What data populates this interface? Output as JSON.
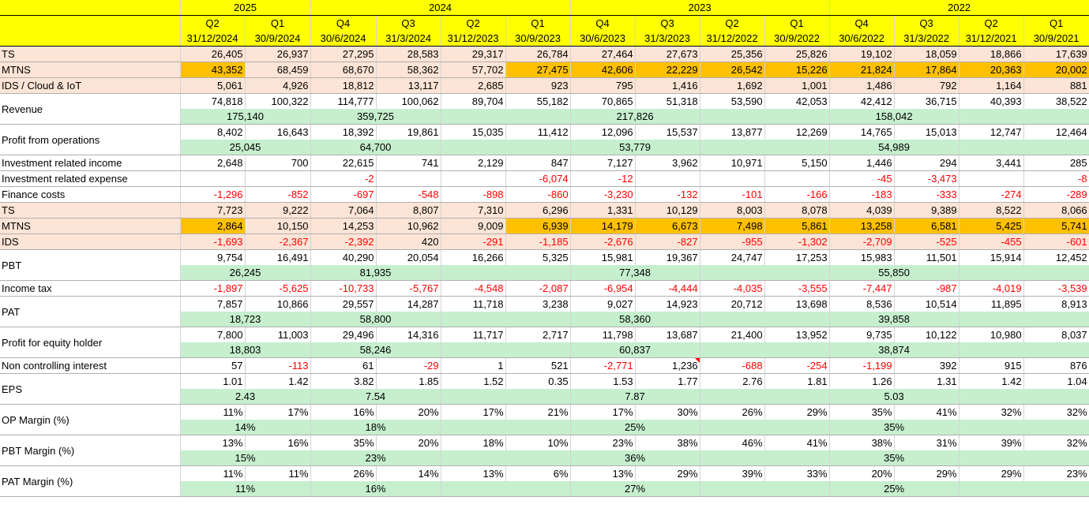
{
  "columns": [
    {
      "quarter": "Q2",
      "date": "31/12/2024"
    },
    {
      "quarter": "Q1",
      "date": "30/9/2024"
    },
    {
      "quarter": "Q4",
      "date": "30/6/2024"
    },
    {
      "quarter": "Q3",
      "date": "31/3/2024"
    },
    {
      "quarter": "Q2",
      "date": "31/12/2023"
    },
    {
      "quarter": "Q1",
      "date": "30/9/2023"
    },
    {
      "quarter": "Q4",
      "date": "30/6/2023"
    },
    {
      "quarter": "Q3",
      "date": "31/3/2023"
    },
    {
      "quarter": "Q2",
      "date": "31/12/2022"
    },
    {
      "quarter": "Q1",
      "date": "30/9/2022"
    },
    {
      "quarter": "Q4",
      "date": "30/6/2022"
    },
    {
      "quarter": "Q3",
      "date": "31/3/2022"
    },
    {
      "quarter": "Q2",
      "date": "31/12/2021"
    },
    {
      "quarter": "Q1",
      "date": "30/9/2021"
    }
  ],
  "years": [
    {
      "label": "2025",
      "span": 2
    },
    {
      "label": "2024",
      "span": 4
    },
    {
      "label": "2023",
      "span": 4
    },
    {
      "label": "2022",
      "span": 4
    }
  ],
  "rows": [
    {
      "kind": "single",
      "style": "orange",
      "label": "TS",
      "values": [
        "26,405",
        "26,937",
        "27,295",
        "28,583",
        "29,317",
        "26,784",
        "27,464",
        "27,673",
        "25,356",
        "25,826",
        "19,102",
        "18,059",
        "18,866",
        "17,639"
      ]
    },
    {
      "kind": "single",
      "style": "orange",
      "label": "MTNS",
      "highlight": [
        0,
        5,
        6,
        7,
        8,
        9,
        10,
        11,
        12,
        13
      ],
      "values": [
        "43,352",
        "68,459",
        "68,670",
        "58,362",
        "57,702",
        "27,475",
        "42,606",
        "22,229",
        "26,542",
        "15,226",
        "21,824",
        "17,864",
        "20,363",
        "20,002"
      ]
    },
    {
      "kind": "single",
      "style": "orange",
      "label": "IDS / Cloud & IoT",
      "values": [
        "5,061",
        "4,926",
        "18,812",
        "13,117",
        "2,685",
        "923",
        "795",
        "1,416",
        "1,692",
        "1,001",
        "1,486",
        "792",
        "1,164",
        "881"
      ]
    },
    {
      "kind": "pair",
      "label": "Revenue",
      "values": [
        "74,818",
        "100,322",
        "114,777",
        "100,062",
        "89,704",
        "55,182",
        "70,865",
        "51,318",
        "53,590",
        "42,053",
        "42,412",
        "36,715",
        "40,393",
        "38,522"
      ],
      "sums": [
        "175,140",
        "359,725",
        "217,826",
        "158,042"
      ]
    },
    {
      "kind": "pair",
      "label": "Profit from operations",
      "values": [
        "8,402",
        "16,643",
        "18,392",
        "19,861",
        "15,035",
        "11,412",
        "12,096",
        "15,537",
        "13,877",
        "12,269",
        "14,765",
        "15,013",
        "12,747",
        "12,464"
      ],
      "sums": [
        "25,045",
        "64,700",
        "53,779",
        "54,989"
      ]
    },
    {
      "kind": "single",
      "label": "Investment related income",
      "values": [
        "2,648",
        "700",
        "22,615",
        "741",
        "2,129",
        "847",
        "7,127",
        "3,962",
        "10,971",
        "5,150",
        "1,446",
        "294",
        "3,441",
        "285"
      ]
    },
    {
      "kind": "single",
      "label": "Investment related expense",
      "values": [
        "",
        "",
        "-2",
        "",
        "",
        "-6,074",
        "-12",
        "",
        "",
        "",
        "-45",
        "-3,473",
        "",
        "-8"
      ]
    },
    {
      "kind": "single",
      "label": "Finance costs",
      "values": [
        "-1,296",
        "-852",
        "-697",
        "-548",
        "-898",
        "-860",
        "-3,230",
        "-132",
        "-101",
        "-166",
        "-183",
        "-333",
        "-274",
        "-289"
      ]
    },
    {
      "kind": "single",
      "style": "orange",
      "label": "TS",
      "values": [
        "7,723",
        "9,222",
        "7,064",
        "8,807",
        "7,310",
        "6,296",
        "1,331",
        "10,129",
        "8,003",
        "8,078",
        "4,039",
        "9,389",
        "8,522",
        "8,066"
      ]
    },
    {
      "kind": "single",
      "style": "orange",
      "label": "MTNS",
      "highlight": [
        0,
        5,
        6,
        7,
        8,
        9,
        10,
        11,
        12,
        13
      ],
      "values": [
        "2,864",
        "10,150",
        "14,253",
        "10,962",
        "9,009",
        "6,939",
        "14,179",
        "6,673",
        "7,498",
        "5,861",
        "13,258",
        "6,581",
        "5,425",
        "5,741"
      ]
    },
    {
      "kind": "single",
      "style": "orange",
      "label": "IDS",
      "values": [
        "-1,693",
        "-2,367",
        "-2,392",
        "420",
        "-291",
        "-1,185",
        "-2,676",
        "-827",
        "-955",
        "-1,302",
        "-2,709",
        "-525",
        "-455",
        "-601"
      ]
    },
    {
      "kind": "pair",
      "label": "PBT",
      "values": [
        "9,754",
        "16,491",
        "40,290",
        "20,054",
        "16,266",
        "5,325",
        "15,981",
        "19,367",
        "24,747",
        "17,253",
        "15,983",
        "11,501",
        "15,914",
        "12,452"
      ],
      "sums": [
        "26,245",
        "81,935",
        "77,348",
        "55,850"
      ]
    },
    {
      "kind": "single",
      "label": "Income tax",
      "values": [
        "-1,897",
        "-5,625",
        "-10,733",
        "-5,767",
        "-4,548",
        "-2,087",
        "-6,954",
        "-4,444",
        "-4,035",
        "-3,555",
        "-7,447",
        "-987",
        "-4,019",
        "-3,539"
      ]
    },
    {
      "kind": "pair",
      "label": "PAT",
      "values": [
        "7,857",
        "10,866",
        "29,557",
        "14,287",
        "11,718",
        "3,238",
        "9,027",
        "14,923",
        "20,712",
        "13,698",
        "8,536",
        "10,514",
        "11,895",
        "8,913"
      ],
      "sums": [
        "18,723",
        "58,800",
        "58,360",
        "39,858"
      ]
    },
    {
      "kind": "pair",
      "label": "Profit for equity holder",
      "values": [
        "7,800",
        "11,003",
        "29,496",
        "14,316",
        "11,717",
        "2,717",
        "11,798",
        "13,687",
        "21,400",
        "13,952",
        "9,735",
        "10,122",
        "10,980",
        "8,037"
      ],
      "sums": [
        "18,803",
        "58,246",
        "60,837",
        "38,874"
      ]
    },
    {
      "kind": "single",
      "label": "Non controlling interest",
      "flag": [
        7
      ],
      "values": [
        "57",
        "-113",
        "61",
        "-29",
        "1",
        "521",
        "-2,771",
        "1,236",
        "-688",
        "-254",
        "-1,199",
        "392",
        "915",
        "876"
      ]
    },
    {
      "kind": "pair",
      "label": "EPS",
      "values": [
        "1.01",
        "1.42",
        "3.82",
        "1.85",
        "1.52",
        "0.35",
        "1.53",
        "1.77",
        "2.76",
        "1.81",
        "1.26",
        "1.31",
        "1.42",
        "1.04"
      ],
      "sums": [
        "2.43",
        "7.54",
        "7.87",
        "5.03"
      ]
    },
    {
      "kind": "pair",
      "label": "OP Margin (%)",
      "values": [
        "11%",
        "17%",
        "16%",
        "20%",
        "17%",
        "21%",
        "17%",
        "30%",
        "26%",
        "29%",
        "35%",
        "41%",
        "32%",
        "32%"
      ],
      "sums": [
        "14%",
        "18%",
        "25%",
        "35%"
      ]
    },
    {
      "kind": "pair",
      "label": "PBT Margin (%)",
      "values": [
        "13%",
        "16%",
        "35%",
        "20%",
        "18%",
        "10%",
        "23%",
        "38%",
        "46%",
        "41%",
        "38%",
        "31%",
        "39%",
        "32%"
      ],
      "sums": [
        "15%",
        "23%",
        "36%",
        "35%"
      ]
    },
    {
      "kind": "pair",
      "label": "PAT Margin (%)",
      "values": [
        "11%",
        "11%",
        "26%",
        "14%",
        "13%",
        "6%",
        "13%",
        "29%",
        "39%",
        "33%",
        "20%",
        "29%",
        "29%",
        "23%"
      ],
      "sums": [
        "11%",
        "16%",
        "27%",
        "25%"
      ]
    }
  ]
}
